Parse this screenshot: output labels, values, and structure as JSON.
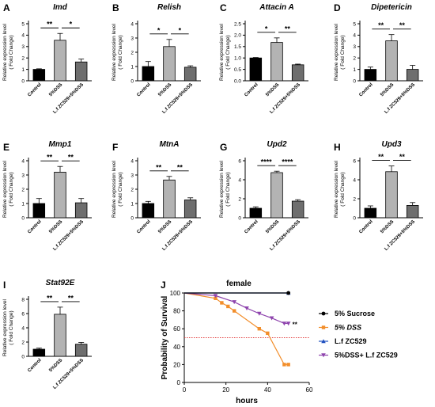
{
  "figure": {
    "background": "#ffffff"
  },
  "chart_data": [
    {
      "panel": "A",
      "type": "bar",
      "title": "Imd",
      "ylabel": [
        "Relative expression level",
        "( Fold Change)"
      ],
      "categories": [
        "Control",
        "5%DSS",
        "L.f ZC529+5%DSS"
      ],
      "values": [
        1.0,
        3.55,
        1.65
      ],
      "errors": [
        0.05,
        0.6,
        0.25
      ],
      "ylim": [
        0,
        5
      ],
      "yticks": [
        0,
        1,
        2,
        3,
        4,
        5
      ],
      "colors": [
        "#000000",
        "#b3b3b3",
        "#6e6e6e"
      ],
      "significance": [
        {
          "from": 0,
          "to": 1,
          "label": "**"
        },
        {
          "from": 1,
          "to": 2,
          "label": "*"
        }
      ]
    },
    {
      "panel": "B",
      "type": "bar",
      "title": "Relish",
      "ylabel": [
        "Relative expression level",
        "( Fold Change)"
      ],
      "categories": [
        "Control",
        "5%DSS",
        "L.f ZC529+5%DSS"
      ],
      "values": [
        1.0,
        2.4,
        0.95
      ],
      "errors": [
        0.35,
        0.5,
        0.1
      ],
      "ylim": [
        0,
        4
      ],
      "yticks": [
        0,
        1,
        2,
        3,
        4
      ],
      "colors": [
        "#000000",
        "#b3b3b3",
        "#6e6e6e"
      ],
      "significance": [
        {
          "from": 0,
          "to": 1,
          "label": "*"
        },
        {
          "from": 1,
          "to": 2,
          "label": "*"
        }
      ]
    },
    {
      "panel": "C",
      "type": "bar",
      "title": "Attacin A",
      "ylabel": [
        "Relative expression level",
        "( Fold Change)"
      ],
      "categories": [
        "Control",
        "5%DSS",
        "L.f ZC529+5%DSS"
      ],
      "values": [
        1.0,
        1.68,
        0.7
      ],
      "errors": [
        0.02,
        0.2,
        0.03
      ],
      "ylim": [
        0,
        2.5
      ],
      "yticks": [
        0.0,
        0.5,
        1.0,
        1.5,
        2.0,
        2.5
      ],
      "colors": [
        "#000000",
        "#b3b3b3",
        "#6e6e6e"
      ],
      "significance": [
        {
          "from": 0,
          "to": 1,
          "label": "*"
        },
        {
          "from": 1,
          "to": 2,
          "label": "**"
        }
      ]
    },
    {
      "panel": "D",
      "type": "bar",
      "title": "Dipetericin",
      "ylabel": [
        "Relative expression level",
        "( Fold Change)"
      ],
      "categories": [
        "Control",
        "5%DSS",
        "L.f ZC529+5%DSS"
      ],
      "values": [
        1.0,
        3.5,
        1.0
      ],
      "errors": [
        0.2,
        0.55,
        0.35
      ],
      "ylim": [
        0,
        5
      ],
      "yticks": [
        0,
        1,
        2,
        3,
        4,
        5
      ],
      "colors": [
        "#000000",
        "#b3b3b3",
        "#6e6e6e"
      ],
      "significance": [
        {
          "from": 0,
          "to": 1,
          "label": "**"
        },
        {
          "from": 1,
          "to": 2,
          "label": "**"
        }
      ]
    },
    {
      "panel": "E",
      "type": "bar",
      "title": "Mmp1",
      "ylabel": [
        "Relative expression level",
        "( Fold Change)"
      ],
      "categories": [
        "Control",
        "5%DSS",
        "L.f ZC529+5%DSS"
      ],
      "values": [
        1.0,
        3.2,
        1.05
      ],
      "errors": [
        0.35,
        0.4,
        0.3
      ],
      "ylim": [
        0,
        4
      ],
      "yticks": [
        0,
        1,
        2,
        3,
        4
      ],
      "colors": [
        "#000000",
        "#b3b3b3",
        "#6e6e6e"
      ],
      "significance": [
        {
          "from": 0,
          "to": 1,
          "label": "**"
        },
        {
          "from": 1,
          "to": 2,
          "label": "**"
        }
      ]
    },
    {
      "panel": "F",
      "type": "bar",
      "title": "MtnA",
      "ylabel": [
        "Relative expression level",
        "( Fold Change)"
      ],
      "categories": [
        "Control",
        "5%DSS",
        "L.f ZC529+5%DSS"
      ],
      "values": [
        1.0,
        2.65,
        1.25
      ],
      "errors": [
        0.15,
        0.25,
        0.15
      ],
      "ylim": [
        0,
        4
      ],
      "yticks": [
        0,
        1,
        2,
        3,
        4
      ],
      "colors": [
        "#000000",
        "#b3b3b3",
        "#6e6e6e"
      ],
      "significance": [
        {
          "from": 0,
          "to": 1,
          "label": "**"
        },
        {
          "from": 1,
          "to": 2,
          "label": "**"
        }
      ]
    },
    {
      "panel": "G",
      "type": "bar",
      "title": "Upd2",
      "ylabel": [
        "Relative expression level",
        "( Fold Change)"
      ],
      "categories": [
        "Control",
        "5%DSS",
        "L.f ZC529+5%DSS"
      ],
      "values": [
        1.0,
        4.75,
        1.75
      ],
      "errors": [
        0.15,
        0.15,
        0.15
      ],
      "ylim": [
        0,
        6
      ],
      "yticks": [
        0,
        2,
        4,
        6
      ],
      "colors": [
        "#000000",
        "#b3b3b3",
        "#6e6e6e"
      ],
      "significance": [
        {
          "from": 0,
          "to": 1,
          "label": "****"
        },
        {
          "from": 1,
          "to": 2,
          "label": "****"
        }
      ]
    },
    {
      "panel": "H",
      "type": "bar",
      "title": "Upd3",
      "ylabel": [
        "Relative expression level",
        "( Fold Change)"
      ],
      "categories": [
        "Control",
        "5%DSS",
        "L.f ZC529+5%DSS"
      ],
      "values": [
        1.0,
        4.85,
        1.3
      ],
      "errors": [
        0.25,
        0.6,
        0.3
      ],
      "ylim": [
        0,
        6
      ],
      "yticks": [
        0,
        2,
        4,
        6
      ],
      "colors": [
        "#000000",
        "#b3b3b3",
        "#6e6e6e"
      ],
      "significance": [
        {
          "from": 0,
          "to": 1,
          "label": "**"
        },
        {
          "from": 1,
          "to": 2,
          "label": "**"
        }
      ]
    },
    {
      "panel": "I",
      "type": "bar",
      "title": "Stat92E",
      "ylabel": [
        "Relative expression level",
        "( Fold Change)"
      ],
      "categories": [
        "Control",
        "5%DSS",
        "L.f ZC529+5%DSS"
      ],
      "values": [
        1.0,
        5.9,
        1.7
      ],
      "errors": [
        0.15,
        1.0,
        0.25
      ],
      "ylim": [
        0,
        8
      ],
      "yticks": [
        0,
        2,
        4,
        6,
        8
      ],
      "colors": [
        "#000000",
        "#b3b3b3",
        "#6e6e6e"
      ],
      "significance": [
        {
          "from": 0,
          "to": 1,
          "label": "**"
        },
        {
          "from": 1,
          "to": 2,
          "label": "**"
        }
      ]
    },
    {
      "panel": "J",
      "type": "line",
      "title": "female",
      "xlabel": "hours",
      "ylabel": "Probability of Survival",
      "xlim": [
        0,
        60
      ],
      "ylim": [
        0,
        100
      ],
      "xticks": [
        0,
        20,
        40,
        60
      ],
      "yticks": [
        0,
        20,
        40,
        60,
        80,
        100
      ],
      "reference_line": {
        "y": 50,
        "color": "#e23b3b",
        "style": "dotted"
      },
      "series": [
        {
          "name": "5% Sucrose",
          "color": "#000000",
          "marker": "circle",
          "x": [
            0,
            50
          ],
          "y": [
            100,
            100
          ]
        },
        {
          "name": "5% DSS",
          "color": "#f28e2b",
          "marker": "square",
          "x": [
            0,
            15,
            18,
            21,
            24,
            36,
            40,
            48,
            50
          ],
          "y": [
            100,
            94,
            89,
            85,
            80,
            60,
            55,
            20,
            20
          ]
        },
        {
          "name": "L.f ZC529",
          "color": "#1f4fbf",
          "marker": "triangle-up",
          "x": [
            0,
            50
          ],
          "y": [
            100,
            100
          ]
        },
        {
          "name": "5%DSS+ L.f ZC529",
          "color": "#8e44ad",
          "marker": "triangle-down",
          "x": [
            0,
            15,
            24,
            30,
            36,
            42,
            48,
            50
          ],
          "y": [
            100,
            97,
            90,
            83,
            77,
            72,
            66,
            66
          ]
        }
      ],
      "annotations": [
        {
          "x": 50,
          "y": 66,
          "label": "**"
        }
      ],
      "legend_position": "right"
    }
  ]
}
